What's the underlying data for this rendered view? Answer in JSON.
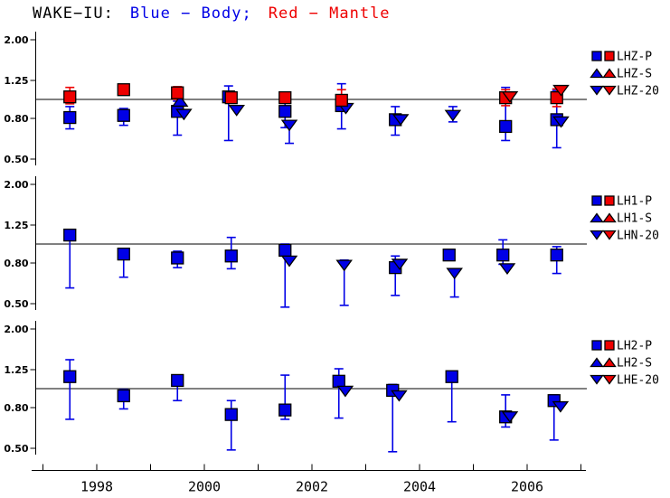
{
  "title": {
    "station": "WAKE−IU:",
    "blue_label": "Blue − Body;",
    "red_label": "Red − Mantle"
  },
  "colors": {
    "body_blue": "#0000E6",
    "mantle_red": "#EE0000",
    "axis_black": "#000000"
  },
  "chart_data": {
    "type": "scatter",
    "title": "WAKE-IU: Blue - Body; Red - Mantle",
    "x_axis": {
      "tick_years": [
        1997,
        1998,
        1999,
        2000,
        2001,
        2002,
        2003,
        2004,
        2005,
        2006,
        2007
      ],
      "labeled_years": [
        1998,
        2000,
        2002,
        2004,
        2006
      ],
      "labels": [
        "1998",
        "2000",
        "2002",
        "2004",
        "2006"
      ],
      "range": [
        1996.8,
        2007.1
      ]
    },
    "y_axis": {
      "scale": "log",
      "tick_values": [
        2.0,
        1.25,
        0.8,
        0.5
      ],
      "tick_labels": [
        "2.00",
        "1.25",
        "0.80",
        "0.50"
      ],
      "reference_value": 1.0,
      "range": [
        0.45,
        2.2
      ]
    },
    "panels": [
      {
        "id": "LHZ",
        "legend": [
          {
            "label": "LHZ-P",
            "shape": "square"
          },
          {
            "label": "LHZ-S",
            "shape": "triangle-up"
          },
          {
            "label": "LHZ-20",
            "shape": "triangle-down"
          }
        ],
        "series": [
          {
            "key": "LHZ-P-body",
            "shape": "square",
            "color": "blue",
            "points": [
              [
                1997.5,
                0.81,
                0.71,
                0.92
              ],
              [
                1998.5,
                0.83,
                0.74,
                0.9
              ],
              [
                1999.5,
                0.87,
                0.66,
                0.98
              ],
              [
                2000.45,
                1.03,
                0.62,
                1.17
              ],
              [
                2001.5,
                0.87,
                0.72,
                0.98
              ],
              [
                2002.55,
                0.93,
                0.71,
                1.2
              ],
              [
                2003.55,
                0.79,
                0.66,
                0.92
              ],
              [
                2005.6,
                0.73,
                0.62,
                1.15
              ],
              [
                2006.55,
                0.79,
                0.57,
                1.11
              ]
            ]
          },
          {
            "key": "LHZ-S-body",
            "shape": "triangle-up",
            "color": "blue",
            "points": [
              [
                1999.55,
                0.98,
                null,
                null
              ]
            ]
          },
          {
            "key": "LHZ-20-body",
            "shape": "triangle-down",
            "color": "blue",
            "points": [
              [
                1999.62,
                0.84,
                null,
                null
              ],
              [
                2000.6,
                0.88,
                null,
                null
              ],
              [
                2001.58,
                0.74,
                0.6,
                null
              ],
              [
                2002.63,
                0.9,
                null,
                null
              ],
              [
                2003.65,
                0.79,
                null,
                null
              ],
              [
                2004.62,
                0.83,
                0.77,
                0.92
              ],
              [
                2006.63,
                0.77,
                null,
                null
              ]
            ]
          },
          {
            "key": "LHZ-P-mantle",
            "shape": "square",
            "color": "red",
            "points": [
              [
                1997.5,
                1.03,
                0.95,
                1.15
              ],
              [
                1998.5,
                1.12,
                1.06,
                1.18
              ],
              [
                1999.5,
                1.08,
                1.0,
                1.16
              ],
              [
                2000.5,
                1.02,
                null,
                null
              ],
              [
                2001.5,
                1.02,
                0.96,
                1.09
              ],
              [
                2002.55,
                0.99,
                0.91,
                1.12
              ],
              [
                2005.6,
                1.02,
                0.93,
                1.12
              ],
              [
                2006.55,
                1.02,
                0.92,
                1.13
              ]
            ]
          },
          {
            "key": "LHZ-20-mantle",
            "shape": "triangle-down",
            "color": "red",
            "points": [
              [
                2005.68,
                1.03,
                null,
                null
              ],
              [
                2006.63,
                1.11,
                null,
                null
              ]
            ]
          }
        ]
      },
      {
        "id": "LH1",
        "legend": [
          {
            "label": "LH1-P",
            "shape": "square"
          },
          {
            "label": "LH1-S",
            "shape": "triangle-up"
          },
          {
            "label": "LHN-20",
            "shape": "triangle-down"
          }
        ],
        "series": [
          {
            "key": "LH1-P-body",
            "shape": "square",
            "color": "blue",
            "points": [
              [
                1997.5,
                1.11,
                0.6,
                null
              ],
              [
                1998.5,
                0.89,
                0.68,
                0.95
              ],
              [
                1999.5,
                0.85,
                0.76,
                0.92
              ],
              [
                2000.5,
                0.87,
                0.75,
                1.08
              ],
              [
                2001.5,
                0.93,
                0.48,
                1.0
              ],
              [
                2003.55,
                0.76,
                0.55,
                0.87
              ],
              [
                2004.55,
                0.88,
                0.83,
                0.93
              ],
              [
                2005.55,
                0.88,
                0.79,
                1.05
              ],
              [
                2006.55,
                0.88,
                0.71,
                0.97
              ]
            ]
          },
          {
            "key": "LH1-S-body",
            "shape": "triangle-up",
            "color": "blue",
            "points": []
          },
          {
            "key": "LHN-20-body",
            "shape": "triangle-down",
            "color": "blue",
            "points": [
              [
                2001.58,
                0.82,
                null,
                null
              ],
              [
                2002.6,
                0.78,
                0.49,
                0.83
              ],
              [
                2003.63,
                0.79,
                null,
                null
              ],
              [
                2004.65,
                0.71,
                0.54,
                null
              ],
              [
                2005.63,
                0.75,
                null,
                null
              ]
            ]
          }
        ]
      },
      {
        "id": "LH2",
        "legend": [
          {
            "label": "LH2-P",
            "shape": "square"
          },
          {
            "label": "LH2-S",
            "shape": "triangle-up"
          },
          {
            "label": "LHE-20",
            "shape": "triangle-down"
          }
        ],
        "series": [
          {
            "key": "LH2-P-body",
            "shape": "square",
            "color": "blue",
            "points": [
              [
                1997.5,
                1.15,
                0.7,
                1.4
              ],
              [
                1998.5,
                0.92,
                0.79,
                0.99
              ],
              [
                1999.5,
                1.1,
                0.87,
                1.16
              ],
              [
                2000.5,
                0.74,
                0.49,
                0.87
              ],
              [
                2001.5,
                0.78,
                0.7,
                1.17
              ],
              [
                2002.5,
                1.09,
                0.71,
                1.26
              ],
              [
                2003.5,
                0.98,
                0.48,
                1.05
              ],
              [
                2004.6,
                1.15,
                0.68,
                1.22
              ],
              [
                2005.6,
                0.72,
                0.64,
                0.93
              ],
              [
                2006.5,
                0.87,
                0.55,
                0.93
              ]
            ]
          },
          {
            "key": "LH2-S-body",
            "shape": "triangle-up",
            "color": "blue",
            "points": []
          },
          {
            "key": "LHE-20-body",
            "shape": "triangle-down",
            "color": "blue",
            "points": [
              [
                2002.62,
                0.97,
                null,
                null
              ],
              [
                2003.62,
                0.92,
                null,
                null
              ],
              [
                2005.68,
                0.72,
                null,
                null
              ],
              [
                2006.62,
                0.81,
                null,
                null
              ]
            ]
          }
        ]
      }
    ]
  }
}
